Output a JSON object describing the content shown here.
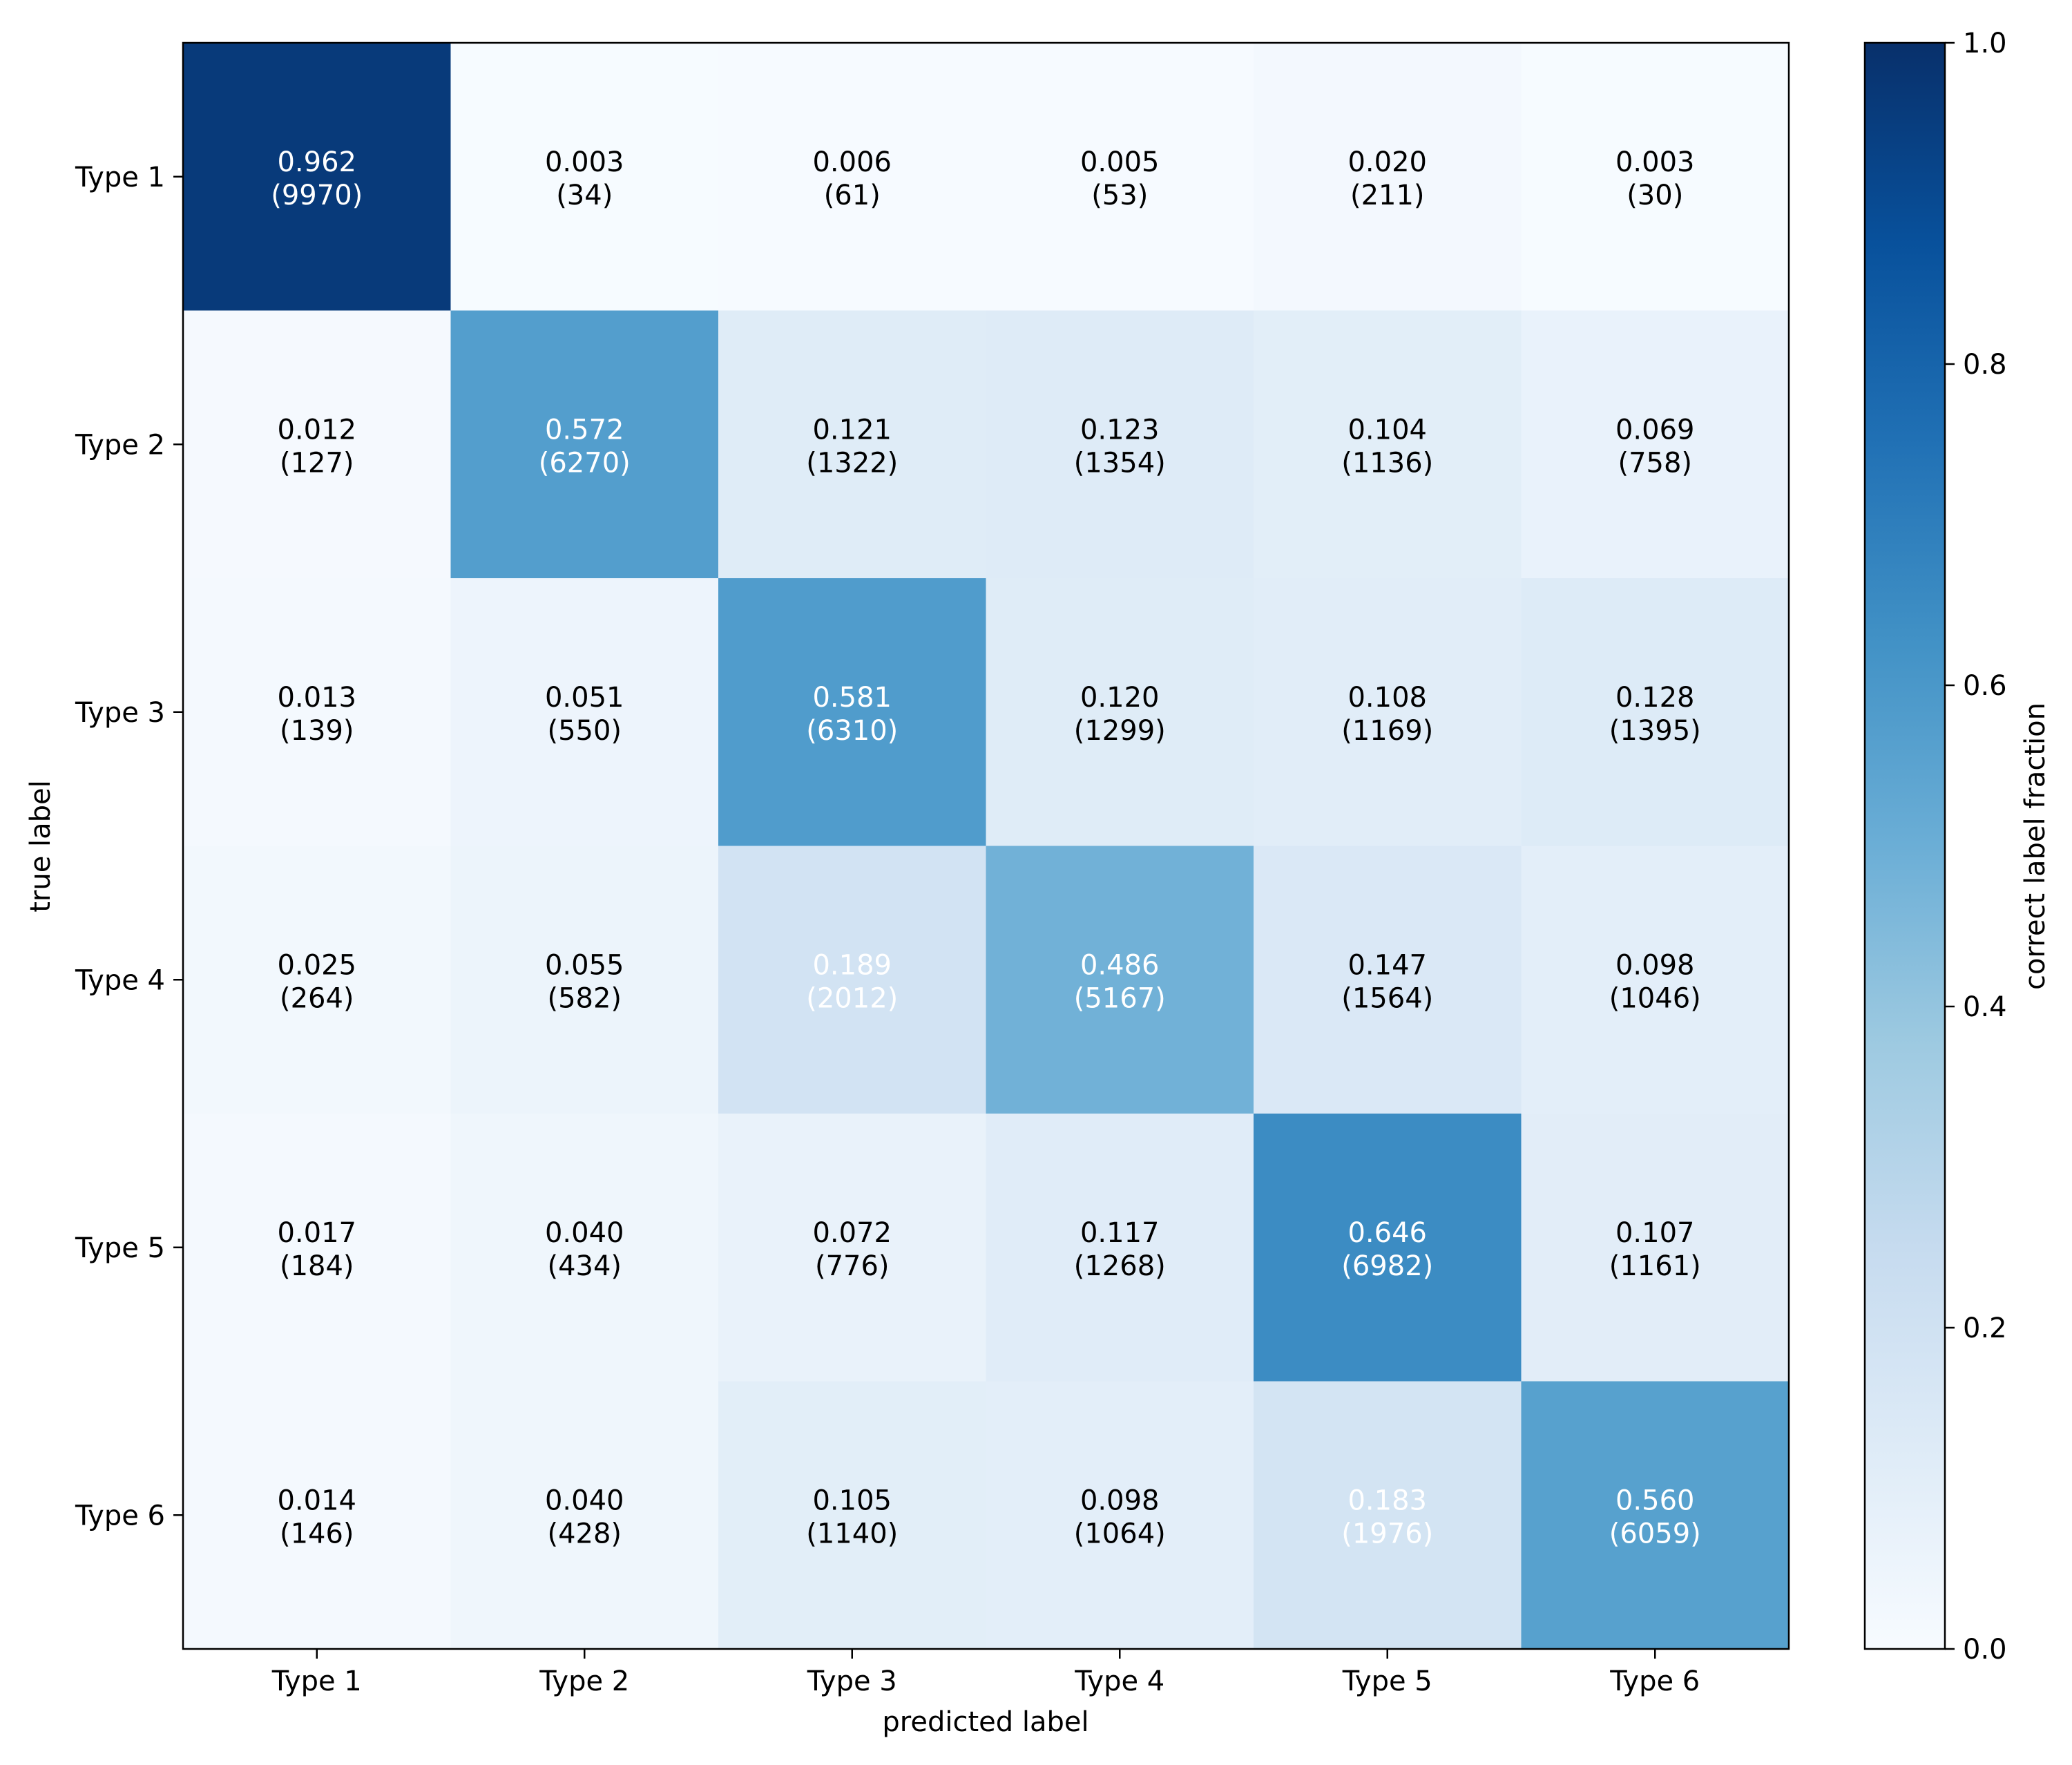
{
  "chart_data": {
    "type": "heatmap",
    "title": "",
    "xlabel": "predicted label",
    "ylabel": "true label",
    "x_categories": [
      "Type 1",
      "Type 2",
      "Type 3",
      "Type 4",
      "Type 5",
      "Type 6"
    ],
    "y_categories": [
      "Type 1",
      "Type 2",
      "Type 3",
      "Type 4",
      "Type 5",
      "Type 6"
    ],
    "fractions": [
      [
        0.962,
        0.003,
        0.006,
        0.005,
        0.02,
        0.003
      ],
      [
        0.012,
        0.572,
        0.121,
        0.123,
        0.104,
        0.069
      ],
      [
        0.013,
        0.051,
        0.581,
        0.12,
        0.108,
        0.128
      ],
      [
        0.025,
        0.055,
        0.189,
        0.486,
        0.147,
        0.098
      ],
      [
        0.017,
        0.04,
        0.072,
        0.117,
        0.646,
        0.107
      ],
      [
        0.014,
        0.04,
        0.105,
        0.098,
        0.183,
        0.56
      ]
    ],
    "counts": [
      [
        9970,
        34,
        61,
        53,
        211,
        30
      ],
      [
        127,
        6270,
        1322,
        1354,
        1136,
        758
      ],
      [
        139,
        550,
        6310,
        1299,
        1169,
        1395
      ],
      [
        264,
        582,
        2012,
        5167,
        1564,
        1046
      ],
      [
        184,
        434,
        776,
        1268,
        6982,
        1161
      ],
      [
        146,
        428,
        1140,
        1064,
        1976,
        6059
      ]
    ],
    "fraction_labels": [
      [
        "0.962",
        "0.003",
        "0.006",
        "0.005",
        "0.020",
        "0.003"
      ],
      [
        "0.012",
        "0.572",
        "0.121",
        "0.123",
        "0.104",
        "0.069"
      ],
      [
        "0.013",
        "0.051",
        "0.581",
        "0.120",
        "0.108",
        "0.128"
      ],
      [
        "0.025",
        "0.055",
        "0.189",
        "0.486",
        "0.147",
        "0.098"
      ],
      [
        "0.017",
        "0.040",
        "0.072",
        "0.117",
        "0.646",
        "0.107"
      ],
      [
        "0.014",
        "0.040",
        "0.105",
        "0.098",
        "0.183",
        "0.560"
      ]
    ],
    "count_labels": [
      [
        "(9970)",
        "(34)",
        "(61)",
        "(53)",
        "(211)",
        "(30)"
      ],
      [
        "(127)",
        "(6270)",
        "(1322)",
        "(1354)",
        "(1136)",
        "(758)"
      ],
      [
        "(139)",
        "(550)",
        "(6310)",
        "(1299)",
        "(1169)",
        "(1395)"
      ],
      [
        "(264)",
        "(582)",
        "(2012)",
        "(5167)",
        "(1564)",
        "(1046)"
      ],
      [
        "(184)",
        "(434)",
        "(776)",
        "(1268)",
        "(6982)",
        "(1161)"
      ],
      [
        "(146)",
        "(428)",
        "(1140)",
        "(1064)",
        "(1976)",
        "(6059)"
      ]
    ],
    "white_text_cells": [
      [
        0,
        0
      ],
      [
        1,
        1
      ],
      [
        2,
        2
      ],
      [
        3,
        2
      ],
      [
        3,
        3
      ],
      [
        4,
        4
      ],
      [
        5,
        4
      ],
      [
        5,
        5
      ]
    ],
    "colormap": "Blues",
    "colorbar": {
      "label": "correct label fraction",
      "range": [
        0.0,
        1.0
      ],
      "ticks": [
        0.0,
        0.2,
        0.4,
        0.6,
        0.8,
        1.0
      ],
      "tick_labels": [
        "0.0",
        "0.2",
        "0.4",
        "0.6",
        "0.8",
        "1.0"
      ]
    },
    "colormap_stops": [
      {
        "t": 0.0,
        "color": "#f7fbff"
      },
      {
        "t": 0.125,
        "color": "#deebf7"
      },
      {
        "t": 0.25,
        "color": "#c6dbef"
      },
      {
        "t": 0.375,
        "color": "#9ecae1"
      },
      {
        "t": 0.5,
        "color": "#6baed6"
      },
      {
        "t": 0.625,
        "color": "#4292c6"
      },
      {
        "t": 0.75,
        "color": "#2171b5"
      },
      {
        "t": 0.875,
        "color": "#08519c"
      },
      {
        "t": 1.0,
        "color": "#08306b"
      }
    ],
    "grid": false,
    "legend": "none"
  }
}
